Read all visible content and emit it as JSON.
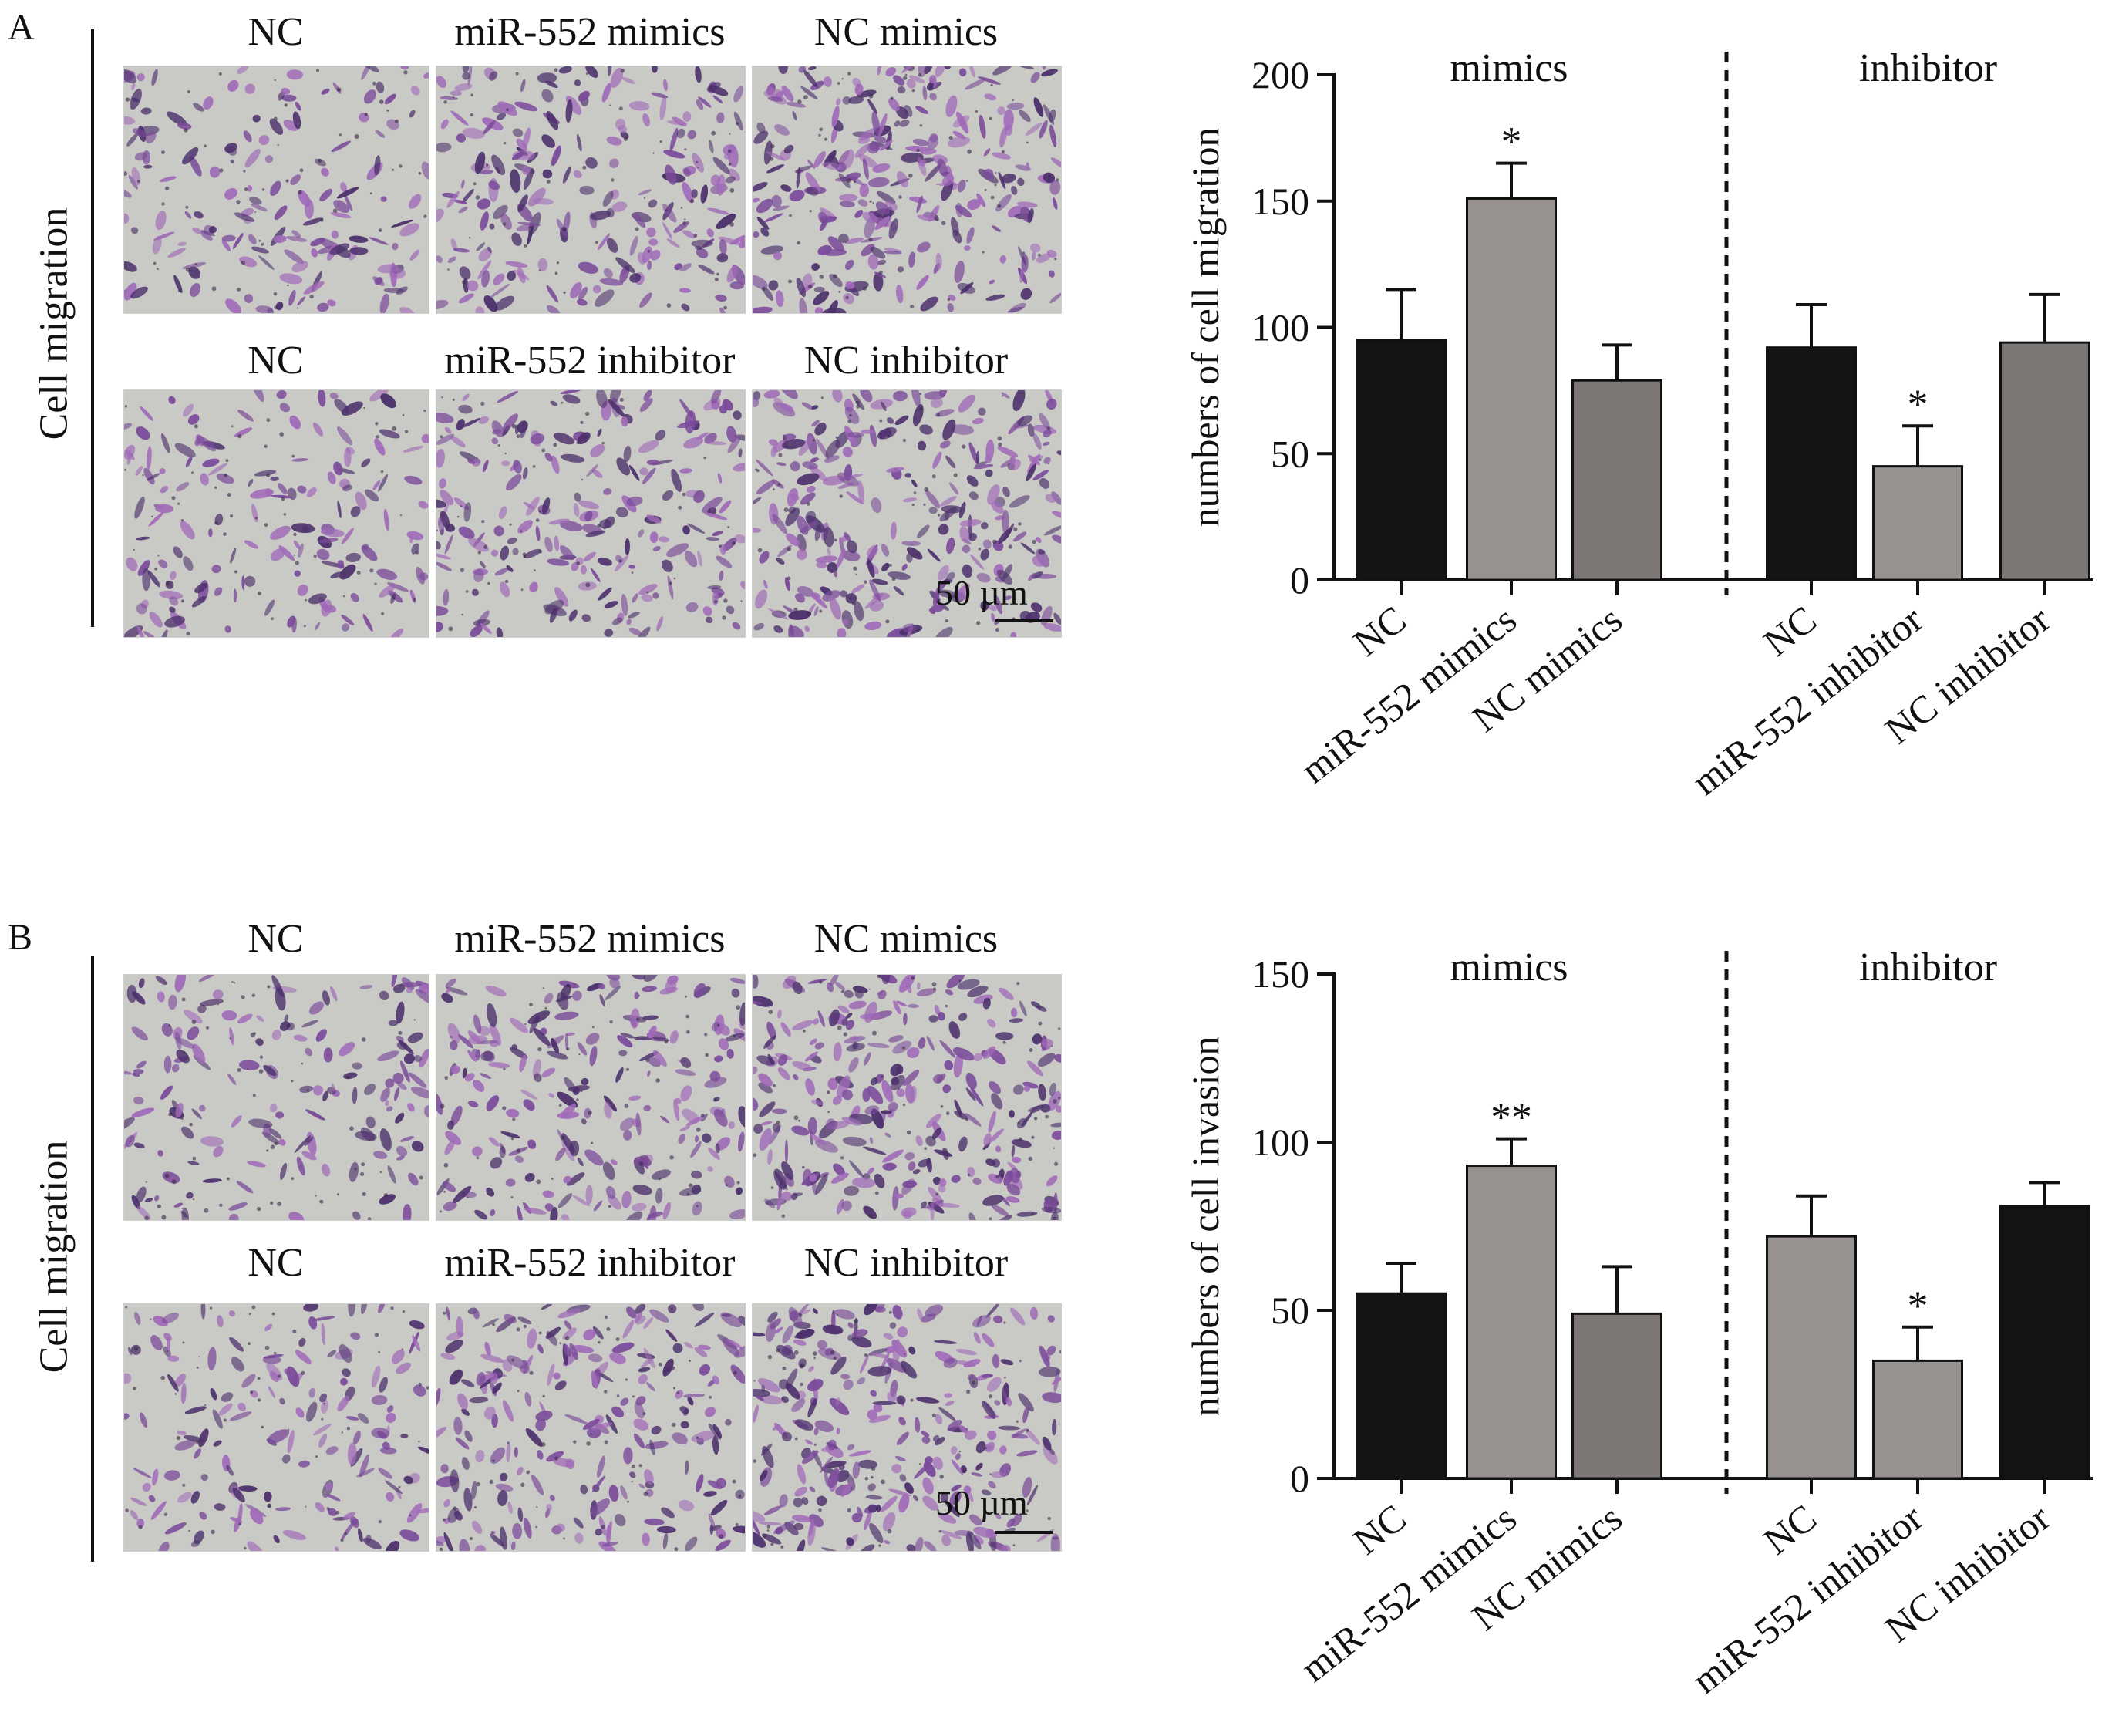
{
  "panels": [
    {
      "letter": "A",
      "row_label": "Cell migration",
      "top_headers": [
        "NC",
        "miR-552 mimics",
        "NC mimics"
      ],
      "bottom_headers": [
        "NC",
        "miR-552 inhibitor",
        "NC inhibitor"
      ],
      "scale_bar": "50 µm"
    },
    {
      "letter": "B",
      "row_label": "Cell migration",
      "top_headers": [
        "NC",
        "miR-552 mimics",
        "NC mimics"
      ],
      "bottom_headers": [
        "NC",
        "miR-552 inhibitor",
        "NC inhibitor"
      ],
      "scale_bar": "50 µm"
    }
  ],
  "colors": {
    "black_bar": "#141414",
    "light_gray_bar": "#979190",
    "dark_gray_bar": "#7d7775",
    "micro_bg": "#c9c9c5",
    "stain_dark": "#4b2f6b",
    "stain_mid": "#7a4a9a",
    "stain_light": "#a06ab8"
  },
  "chart_data": [
    {
      "type": "bar",
      "ylabel": "numbers of cell migration",
      "ylim": [
        0,
        200
      ],
      "yticks": [
        0,
        50,
        100,
        150,
        200
      ],
      "groups": [
        {
          "label": "mimics",
          "categories": [
            "NC",
            "miR-552 mimics",
            "NC mimics"
          ]
        },
        {
          "label": "inhibitor",
          "categories": [
            "NC",
            "miR-552 inhibitor",
            "NC inhibitor"
          ]
        }
      ],
      "categories": [
        "NC",
        "miR-552 mimics",
        "NC mimics",
        "NC",
        "miR-552 inhibitor",
        "NC inhibitor"
      ],
      "values": [
        95,
        151,
        79,
        92,
        45,
        94
      ],
      "errors": [
        20,
        14,
        14,
        17,
        16,
        19
      ],
      "significance": [
        "",
        "*",
        "",
        "",
        "*",
        ""
      ],
      "bar_colors": [
        "black",
        "light_gray",
        "dark_gray",
        "black",
        "light_gray",
        "dark_gray"
      ]
    },
    {
      "type": "bar",
      "ylabel": "numbers of cell invasion",
      "ylim": [
        0,
        150
      ],
      "yticks": [
        0,
        50,
        100,
        150
      ],
      "groups": [
        {
          "label": "mimics",
          "categories": [
            "NC",
            "miR-552 mimics",
            "NC mimics"
          ]
        },
        {
          "label": "inhibitor",
          "categories": [
            "NC",
            "miR-552 inhibitor",
            "NC inhibitor"
          ]
        }
      ],
      "categories": [
        "NC",
        "miR-552 mimics",
        "NC mimics",
        "NC",
        "miR-552 inhibitor",
        "NC inhibitor"
      ],
      "values": [
        55,
        93,
        49,
        72,
        35,
        81
      ],
      "errors": [
        9,
        8,
        14,
        12,
        10,
        7
      ],
      "significance": [
        "",
        "**",
        "",
        "",
        "*",
        ""
      ],
      "bar_colors": [
        "black",
        "light_gray",
        "dark_gray",
        "light_gray",
        "light_gray",
        "black"
      ]
    }
  ]
}
